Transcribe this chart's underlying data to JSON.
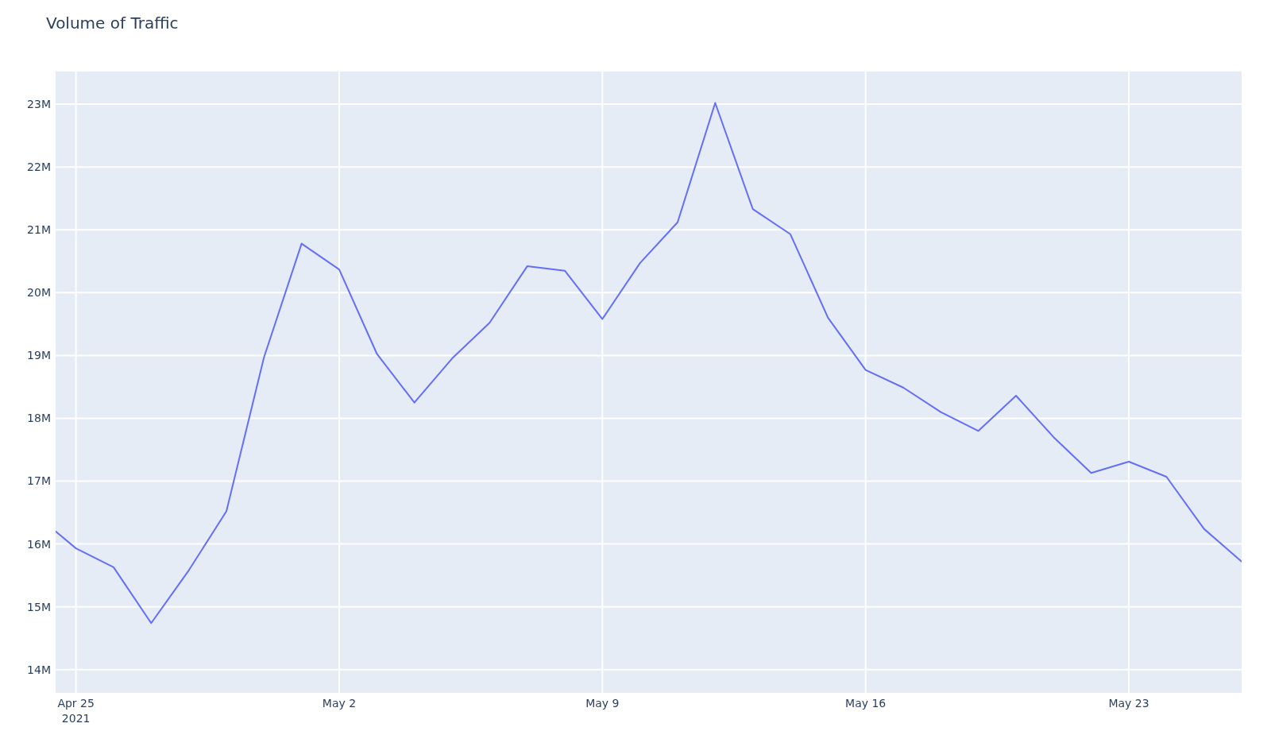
{
  "chart_data": {
    "type": "line",
    "title": "Volume of Traffic",
    "x": [
      "2021-04-24T11:00",
      "2021-04-25",
      "2021-04-26",
      "2021-04-27",
      "2021-04-28",
      "2021-04-29",
      "2021-04-30",
      "2021-05-01",
      "2021-05-02",
      "2021-05-03",
      "2021-05-04",
      "2021-05-05",
      "2021-05-06",
      "2021-05-07",
      "2021-05-08",
      "2021-05-09",
      "2021-05-10",
      "2021-05-11",
      "2021-05-12",
      "2021-05-13",
      "2021-05-14",
      "2021-05-15",
      "2021-05-16",
      "2021-05-17",
      "2021-05-18",
      "2021-05-19",
      "2021-05-20",
      "2021-05-21",
      "2021-05-22",
      "2021-05-23",
      "2021-05-24",
      "2021-05-25",
      "2021-05-26"
    ],
    "series": [
      {
        "color": "#636efa",
        "values": [
          16200000,
          15930000,
          15630000,
          14740000,
          15580000,
          16520000,
          18970000,
          20780000,
          20370000,
          19030000,
          18250000,
          18950000,
          19520000,
          20420000,
          20350000,
          19580000,
          20470000,
          21120000,
          23020000,
          21330000,
          20930000,
          19600000,
          18770000,
          18490000,
          18100000,
          17800000,
          18360000,
          17700000,
          17130000,
          17310000,
          17070000,
          16240000,
          15720000
        ]
      }
    ],
    "xlim": [
      "2021-04-24T11:00",
      "2021-05-26"
    ],
    "xticks": [
      {
        "value": "2021-04-25",
        "label": "Apr 25\n2021"
      },
      {
        "value": "2021-05-02",
        "label": "May 2"
      },
      {
        "value": "2021-05-09",
        "label": "May 9"
      },
      {
        "value": "2021-05-16",
        "label": "May 16"
      },
      {
        "value": "2021-05-23",
        "label": "May 23"
      }
    ],
    "ylim": [
      13630000,
      23520000
    ],
    "yticks": [
      {
        "value": 14000000,
        "label": "14M"
      },
      {
        "value": 15000000,
        "label": "15M"
      },
      {
        "value": 16000000,
        "label": "16M"
      },
      {
        "value": 17000000,
        "label": "17M"
      },
      {
        "value": 18000000,
        "label": "18M"
      },
      {
        "value": 19000000,
        "label": "19M"
      },
      {
        "value": 20000000,
        "label": "20M"
      },
      {
        "value": 21000000,
        "label": "21M"
      },
      {
        "value": 22000000,
        "label": "22M"
      },
      {
        "value": 23000000,
        "label": "23M"
      }
    ],
    "grid": true,
    "line_style": "solid",
    "marker": "none"
  }
}
